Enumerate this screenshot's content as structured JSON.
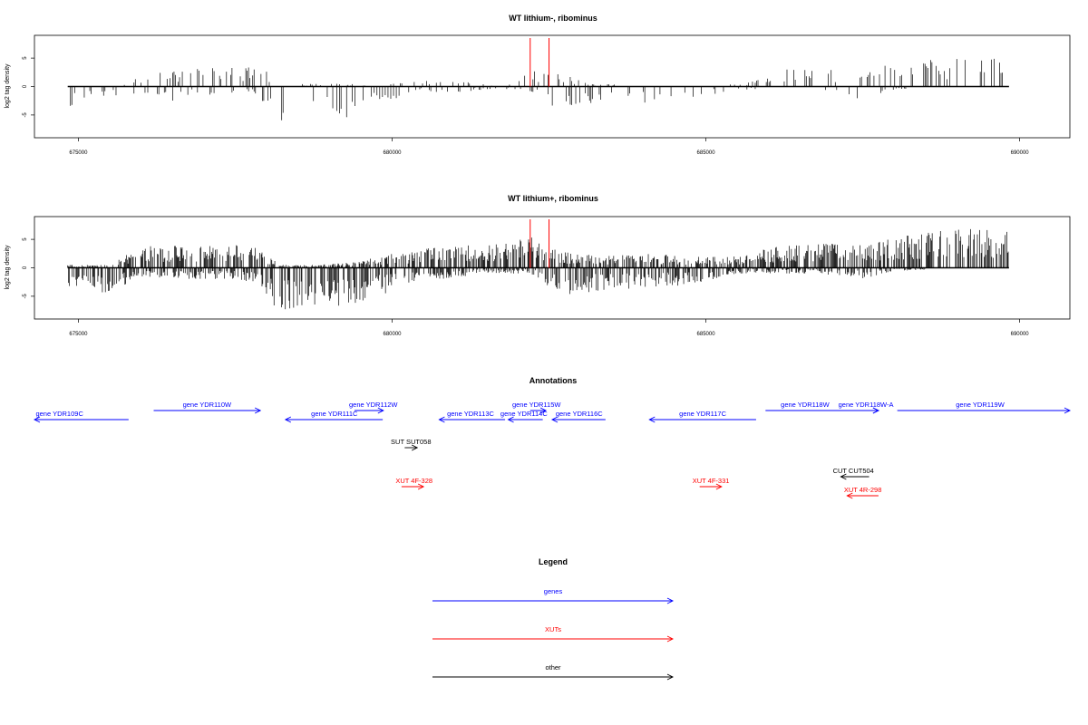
{
  "chart_data": [
    {
      "type": "bar",
      "title": "WT lithium-, ribominus",
      "xlabel": "",
      "ylabel": "log2 tag density",
      "xlim": [
        674300,
        690800
      ],
      "ylim": [
        -9,
        9
      ],
      "xticks": [
        675000,
        680000,
        685000,
        690000
      ],
      "xtick_labels": [
        "675000",
        "680000",
        "685000",
        "690000"
      ],
      "yticks": [
        -5,
        0,
        5
      ],
      "ytick_labels": [
        "-5",
        "0",
        "5"
      ],
      "x_range": [
        674830,
        689830
      ],
      "markers": [
        682200,
        682500
      ],
      "marker_color": "#ff0000",
      "bar_color": "#000000",
      "baseline": 0,
      "density": "sparse",
      "envelope": [
        {
          "x": 674830,
          "pos": 0.0,
          "neg": -3.5
        },
        {
          "x": 675500,
          "pos": 0.0,
          "neg": -2.0
        },
        {
          "x": 676000,
          "pos": 2.0,
          "neg": -1.0
        },
        {
          "x": 676500,
          "pos": 3.0,
          "neg": -2.5
        },
        {
          "x": 677000,
          "pos": 3.5,
          "neg": -1.5
        },
        {
          "x": 677500,
          "pos": 3.5,
          "neg": -1.5
        },
        {
          "x": 677900,
          "pos": 4.0,
          "neg": -2.0
        },
        {
          "x": 678200,
          "pos": 0.5,
          "neg": -7.0
        },
        {
          "x": 678700,
          "pos": 0.5,
          "neg": -4.5
        },
        {
          "x": 679300,
          "pos": 0.5,
          "neg": -5.5
        },
        {
          "x": 679900,
          "pos": 0.3,
          "neg": -3.0
        },
        {
          "x": 680300,
          "pos": 1.0,
          "neg": -1.0
        },
        {
          "x": 681000,
          "pos": 1.0,
          "neg": -1.0
        },
        {
          "x": 681800,
          "pos": 0.3,
          "neg": -0.5
        },
        {
          "x": 682200,
          "pos": 3.5,
          "neg": -1.0
        },
        {
          "x": 682600,
          "pos": 2.5,
          "neg": -4.0
        },
        {
          "x": 683200,
          "pos": 0.5,
          "neg": -3.5
        },
        {
          "x": 684000,
          "pos": 0.3,
          "neg": -3.0
        },
        {
          "x": 684800,
          "pos": 0.2,
          "neg": -2.0
        },
        {
          "x": 685600,
          "pos": 0.5,
          "neg": -1.0
        },
        {
          "x": 686000,
          "pos": 3.0,
          "neg": -0.3
        },
        {
          "x": 686800,
          "pos": 3.5,
          "neg": -0.3
        },
        {
          "x": 687500,
          "pos": 2.0,
          "neg": -2.5
        },
        {
          "x": 688000,
          "pos": 4.5,
          "neg": -0.5
        },
        {
          "x": 688800,
          "pos": 5.0,
          "neg": -0.2
        },
        {
          "x": 689830,
          "pos": 5.0,
          "neg": -0.2
        }
      ]
    },
    {
      "type": "bar",
      "title": "WT lithium+, ribominus",
      "xlabel": "",
      "ylabel": "log2 tag density",
      "xlim": [
        674300,
        690800
      ],
      "ylim": [
        -9,
        9
      ],
      "xticks": [
        675000,
        680000,
        685000,
        690000
      ],
      "xtick_labels": [
        "675000",
        "680000",
        "685000",
        "690000"
      ],
      "yticks": [
        -5,
        0,
        5
      ],
      "ytick_labels": [
        "-5",
        "0",
        "5"
      ],
      "x_range": [
        674830,
        689830
      ],
      "markers": [
        682200,
        682500
      ],
      "marker_color": "#ff0000",
      "bar_color": "#000000",
      "baseline": 0,
      "density": "dense",
      "envelope": [
        {
          "x": 674830,
          "pos": 0.5,
          "neg": -3.5
        },
        {
          "x": 675500,
          "pos": 0.5,
          "neg": -4.5
        },
        {
          "x": 676000,
          "pos": 4.0,
          "neg": -1.5
        },
        {
          "x": 676700,
          "pos": 4.0,
          "neg": -2.0
        },
        {
          "x": 677500,
          "pos": 4.0,
          "neg": -2.0
        },
        {
          "x": 677900,
          "pos": 3.5,
          "neg": -3.0
        },
        {
          "x": 678200,
          "pos": 0.5,
          "neg": -8.0
        },
        {
          "x": 678800,
          "pos": 0.5,
          "neg": -6.5
        },
        {
          "x": 679400,
          "pos": 1.0,
          "neg": -7.0
        },
        {
          "x": 680000,
          "pos": 2.5,
          "neg": -4.0
        },
        {
          "x": 680800,
          "pos": 4.0,
          "neg": -2.0
        },
        {
          "x": 681500,
          "pos": 4.0,
          "neg": -1.0
        },
        {
          "x": 682200,
          "pos": 5.5,
          "neg": -1.0
        },
        {
          "x": 682700,
          "pos": 3.0,
          "neg": -5.0
        },
        {
          "x": 683300,
          "pos": 2.0,
          "neg": -4.0
        },
        {
          "x": 684000,
          "pos": 2.5,
          "neg": -3.5
        },
        {
          "x": 684800,
          "pos": 2.0,
          "neg": -3.0
        },
        {
          "x": 685500,
          "pos": 2.0,
          "neg": -1.0
        },
        {
          "x": 686000,
          "pos": 3.5,
          "neg": -1.0
        },
        {
          "x": 686800,
          "pos": 4.5,
          "neg": -1.0
        },
        {
          "x": 687500,
          "pos": 4.0,
          "neg": -2.0
        },
        {
          "x": 688000,
          "pos": 5.5,
          "neg": -0.5
        },
        {
          "x": 689000,
          "pos": 7.0,
          "neg": -0.3
        },
        {
          "x": 689830,
          "pos": 6.5,
          "neg": -0.3
        }
      ]
    }
  ],
  "annotations": {
    "title": "Annotations",
    "xlim": [
      674300,
      690800
    ],
    "features": [
      {
        "label": "gene YDR109C",
        "color": "#0000ff",
        "row": 2,
        "start": 674300,
        "end": 675800,
        "strand": "-",
        "label_pos": 674700
      },
      {
        "label": "gene YDR110W",
        "color": "#0000ff",
        "row": 1,
        "start": 676200,
        "end": 677900,
        "strand": "+",
        "label_pos": 677050
      },
      {
        "label": "gene YDR111C",
        "color": "#0000ff",
        "row": 2,
        "start": 678300,
        "end": 679850,
        "strand": "-",
        "label_pos": 679080
      },
      {
        "label": "gene YDR112W",
        "color": "#0000ff",
        "row": 1,
        "start": 679400,
        "end": 679860,
        "strand": "+",
        "label_pos": 679700
      },
      {
        "label": "gene YDR113C",
        "color": "#0000ff",
        "row": 2,
        "start": 680750,
        "end": 681800,
        "strand": "-",
        "label_pos": 681250
      },
      {
        "label": "gene YDR114C",
        "color": "#0000ff",
        "row": 2,
        "start": 681850,
        "end": 682400,
        "strand": "-",
        "label_pos": 682100
      },
      {
        "label": "gene YDR115W",
        "color": "#0000ff",
        "row": 1,
        "start": 682200,
        "end": 682450,
        "strand": "+",
        "label_pos": 682300
      },
      {
        "label": "gene YDR116C",
        "color": "#0000ff",
        "row": 2,
        "start": 682550,
        "end": 683400,
        "strand": "-",
        "label_pos": 682980
      },
      {
        "label": "gene YDR117C",
        "color": "#0000ff",
        "row": 2,
        "start": 684100,
        "end": 685800,
        "strand": "-",
        "label_pos": 684950
      },
      {
        "label": "gene YDR118W",
        "color": "#0000ff",
        "row": 1,
        "start": 685950,
        "end": 687750,
        "strand": "+",
        "label_pos": 686580
      },
      {
        "label": "gene YDR118W-A",
        "color": "#0000ff",
        "row": 1,
        "start": 687400,
        "end": 687750,
        "strand": "+",
        "label_pos": 687550
      },
      {
        "label": "gene YDR119W",
        "color": "#0000ff",
        "row": 1,
        "start": 688050,
        "end": 690800,
        "strand": "+",
        "label_pos": 689370
      },
      {
        "label": "SUT SUT058",
        "color": "#000000",
        "row": 3,
        "start": 680200,
        "end": 680400,
        "strand": "+",
        "label_pos": 680300
      },
      {
        "label": "CUT CUT504",
        "color": "#000000",
        "row": 5,
        "start": 687150,
        "end": 687600,
        "strand": "-",
        "label_pos": 687350
      },
      {
        "label": "XUT 4F-328",
        "color": "#ff0000",
        "row": 6,
        "start": 680150,
        "end": 680500,
        "strand": "+",
        "label_pos": 680350
      },
      {
        "label": "XUT 4F-331",
        "color": "#ff0000",
        "row": 6,
        "start": 684900,
        "end": 685250,
        "strand": "+",
        "label_pos": 685080
      },
      {
        "label": "XUT 4R-298",
        "color": "#ff0000",
        "row": 7,
        "start": 687250,
        "end": 687750,
        "strand": "-",
        "label_pos": 687500
      }
    ]
  },
  "legend": {
    "title": "Legend",
    "items": [
      {
        "label": "genes",
        "color": "#0000ff"
      },
      {
        "label": "XUTs",
        "color": "#ff0000"
      },
      {
        "label": "other",
        "color": "#000000"
      }
    ]
  }
}
